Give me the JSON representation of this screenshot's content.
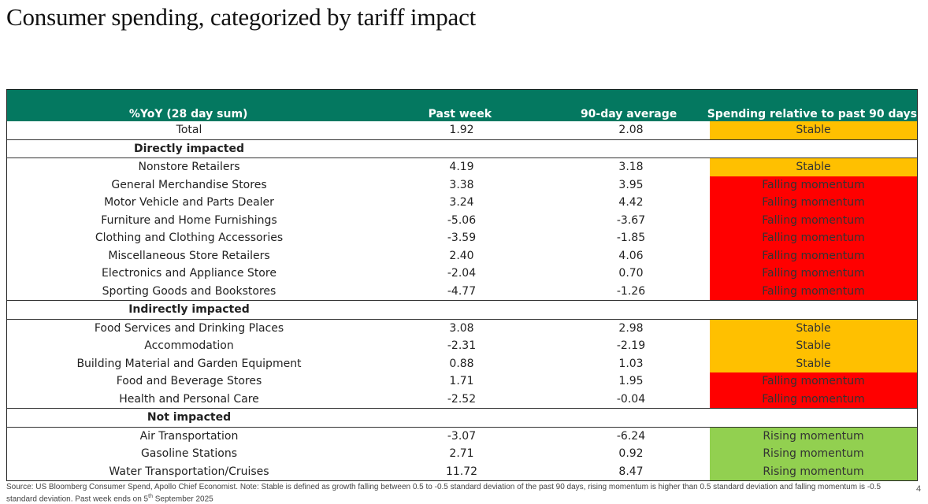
{
  "title": "Consumer spending, categorized by tariff impact",
  "table": {
    "headers": [
      "%YoY (28 day sum)",
      "Past week",
      "90-day average",
      "Spending relative to past 90 days"
    ],
    "total": {
      "label": "Total",
      "past_week": "1.92",
      "avg90": "2.08",
      "status": "Stable",
      "status_type": "stable"
    },
    "sections": [
      {
        "name": "Directly impacted",
        "rows": [
          {
            "label": "Nonstore Retailers",
            "past_week": "4.19",
            "avg90": "3.18",
            "status": "Stable",
            "status_type": "stable"
          },
          {
            "label": "General Merchandise Stores",
            "past_week": "3.38",
            "avg90": "3.95",
            "status": "Falling momentum",
            "status_type": "falling"
          },
          {
            "label": "Motor Vehicle and Parts Dealer",
            "past_week": "3.24",
            "avg90": "4.42",
            "status": "Falling momentum",
            "status_type": "falling"
          },
          {
            "label": "Furniture and Home Furnishings",
            "past_week": "-5.06",
            "avg90": "-3.67",
            "status": "Falling momentum",
            "status_type": "falling"
          },
          {
            "label": "Clothing and Clothing Accessories",
            "past_week": "-3.59",
            "avg90": "-1.85",
            "status": "Falling momentum",
            "status_type": "falling"
          },
          {
            "label": "Miscellaneous Store Retailers",
            "past_week": "2.40",
            "avg90": "4.06",
            "status": "Falling momentum",
            "status_type": "falling"
          },
          {
            "label": "Electronics and Appliance Store",
            "past_week": "-2.04",
            "avg90": "0.70",
            "status": "Falling momentum",
            "status_type": "falling"
          },
          {
            "label": "Sporting Goods and Bookstores",
            "past_week": "-4.77",
            "avg90": "-1.26",
            "status": "Falling momentum",
            "status_type": "falling"
          }
        ]
      },
      {
        "name": "Indirectly impacted",
        "rows": [
          {
            "label": "Food Services and Drinking Places",
            "past_week": "3.08",
            "avg90": "2.98",
            "status": "Stable",
            "status_type": "stable"
          },
          {
            "label": "Accommodation",
            "past_week": "-2.31",
            "avg90": "-2.19",
            "status": "Stable",
            "status_type": "stable"
          },
          {
            "label": "Building Material and Garden Equipment",
            "past_week": "0.88",
            "avg90": "1.03",
            "status": "Stable",
            "status_type": "stable"
          },
          {
            "label": "Food and Beverage Stores",
            "past_week": "1.71",
            "avg90": "1.95",
            "status": "Falling momentum",
            "status_type": "falling"
          },
          {
            "label": "Health and Personal Care",
            "past_week": "-2.52",
            "avg90": "-0.04",
            "status": "Falling momentum",
            "status_type": "falling"
          }
        ]
      },
      {
        "name": "Not impacted",
        "rows": [
          {
            "label": "Air Transportation",
            "past_week": "-3.07",
            "avg90": "-6.24",
            "status": "Rising momentum",
            "status_type": "rising"
          },
          {
            "label": "Gasoline Stations",
            "past_week": "2.71",
            "avg90": "0.92",
            "status": "Rising momentum",
            "status_type": "rising"
          },
          {
            "label": "Water Transportation/Cruises",
            "past_week": "11.72",
            "avg90": "8.47",
            "status": "Rising momentum",
            "status_type": "rising"
          }
        ]
      }
    ]
  },
  "colors": {
    "header_bg": "#047860",
    "stable": "#ffc000",
    "falling": "#ff0000",
    "rising": "#92d050"
  },
  "footnote": {
    "text": "Source: US Bloomberg Consumer Spend, Apollo Chief Economist. Note: Stable is defined as growth falling between 0.5 to -0.5 standard deviation of the past 90 days, rising momentum is higher than 0.5 standard deviation and falling momentum is -0.5 standard deviation. Past week ends on 5",
    "superscript": "th",
    "text_end": " September 2025"
  },
  "page_number": "4"
}
